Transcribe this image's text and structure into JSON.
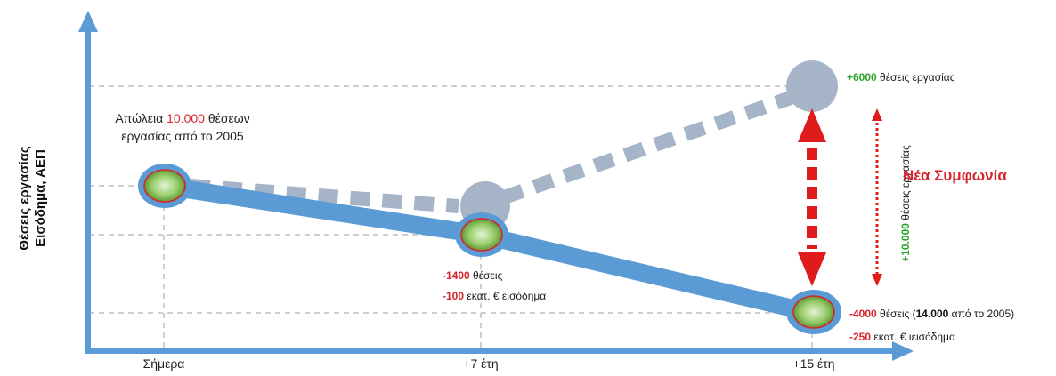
{
  "y_axis_label": [
    "Θέσεις εργασίας",
    "Εισόδημα, ΑΕΠ"
  ],
  "x_ticks": [
    "Σήμερα",
    "+7 έτη",
    "+15 έτη"
  ],
  "loss_note": {
    "prefix": "Απώλεια ",
    "highlight": "10.000",
    "suffix_line1": " θέσεων",
    "line2": "εργασίας από το 2005"
  },
  "point_7y": {
    "jobs_value": "-1400",
    "jobs_text": " θέσεις",
    "income_value": "-100",
    "income_text": " εκατ. € εισόδημα"
  },
  "point_15y": {
    "jobs_value": "-4000",
    "jobs_text_a": " θέσεις (",
    "jobs_total": "14.000",
    "jobs_text_b": " από το 2005)",
    "income_value": "-250",
    "income_text": " εκατ. € ιεισόδημα"
  },
  "top_note": {
    "value": "+6000",
    "text": " θέσεις εργασίας"
  },
  "vertical_note": {
    "value": "+10.000",
    "text": " θέσεις εργασίας"
  },
  "deal_label": "Νέα Συμφωνία",
  "colors": {
    "axis": "#5b9bd5",
    "decline_line": "#5b9bd5",
    "alt_path": "#a6b4c8",
    "marker_fill": "#8cc363",
    "marker_outline": "#d6242a",
    "arrow": "#e01b1b",
    "grid": "#b0b0b0"
  }
}
